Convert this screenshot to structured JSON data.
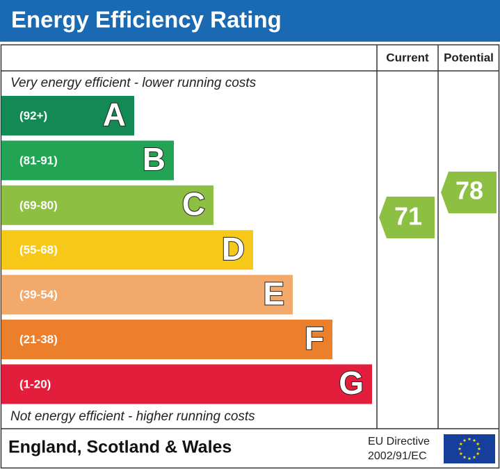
{
  "title": "Energy Efficiency Rating",
  "columns": {
    "current": "Current",
    "potential": "Potential"
  },
  "top_note": "Very energy efficient - lower running costs",
  "bands": [
    {
      "range": "(92+)",
      "letter": "A",
      "color": "#138a55"
    },
    {
      "range": "(81-91)",
      "letter": "B",
      "color": "#23a455"
    },
    {
      "range": "(69-80)",
      "letter": "C",
      "color": "#8cbf42"
    },
    {
      "range": "(55-68)",
      "letter": "D",
      "color": "#f6c918"
    },
    {
      "range": "(39-54)",
      "letter": "E",
      "color": "#f2a96c"
    },
    {
      "range": "(21-38)",
      "letter": "F",
      "color": "#ec7f2b"
    },
    {
      "range": "(1-20)",
      "letter": "G",
      "color": "#e31d3c"
    }
  ],
  "bottom_note": "Not energy efficient - higher running costs",
  "current": {
    "value": 71,
    "color": "#8cbf42"
  },
  "potential": {
    "value": 78,
    "color": "#8cbf42"
  },
  "footer": {
    "region": "England, Scotland & Wales",
    "directive": [
      "EU Directive",
      "2002/91/EC"
    ]
  }
}
